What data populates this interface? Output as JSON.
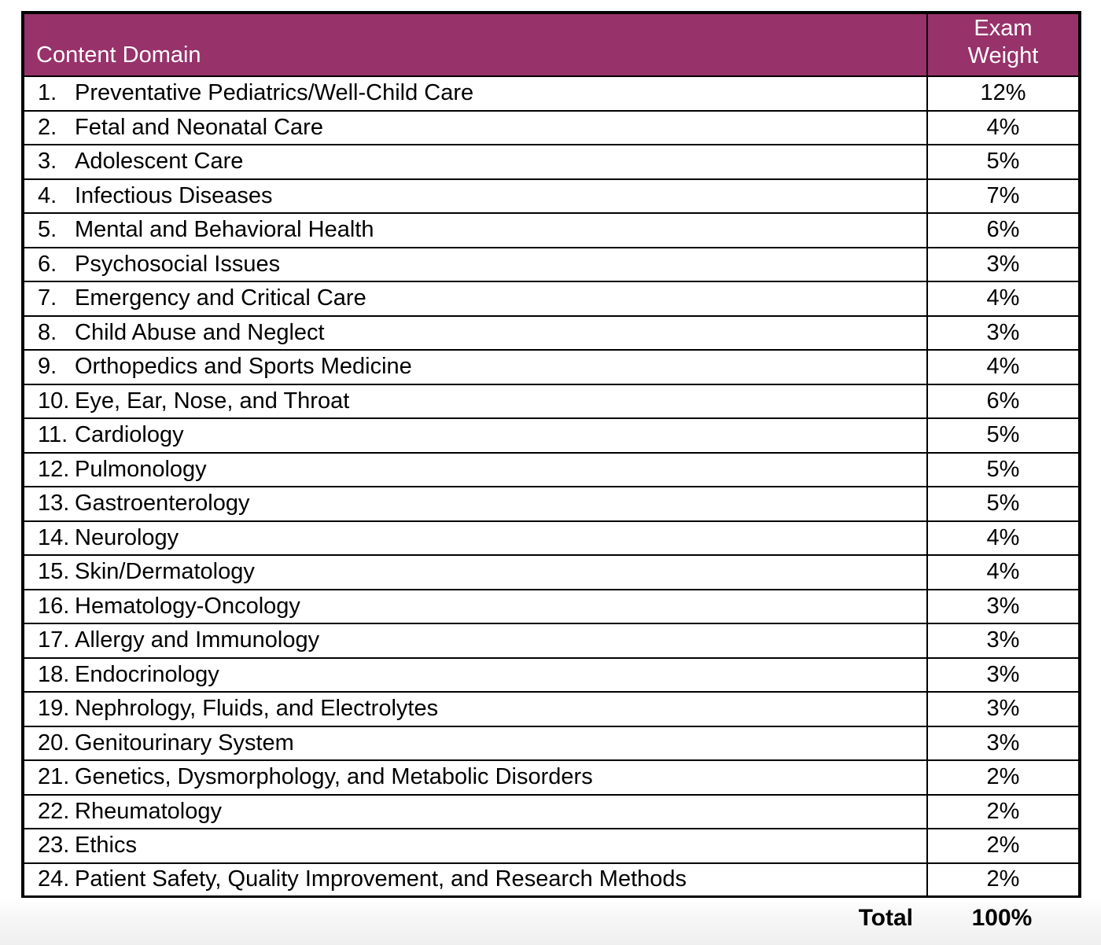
{
  "theme": {
    "page_bg": "#FFFFFF",
    "header_bg": "#97326A",
    "header_text": "#FFFFFF",
    "body_text": "#000000",
    "border": "#000000",
    "footer_gradient_start": "#FFFFFF",
    "footer_gradient_end": "#EFEFEF"
  },
  "table": {
    "header": {
      "domain": "Content Domain",
      "weight_line1": "Exam",
      "weight_line2": "Weight"
    },
    "rows": [
      {
        "num": "1.",
        "label": "Preventative Pediatrics/Well-Child Care",
        "weight": "12%"
      },
      {
        "num": "2.",
        "label": "Fetal and Neonatal Care",
        "weight": "4%"
      },
      {
        "num": "3.",
        "label": "Adolescent Care",
        "weight": "5%"
      },
      {
        "num": "4.",
        "label": "Infectious Diseases",
        "weight": "7%"
      },
      {
        "num": "5.",
        "label": "Mental and Behavioral Health",
        "weight": "6%"
      },
      {
        "num": "6.",
        "label": "Psychosocial Issues",
        "weight": "3%"
      },
      {
        "num": "7.",
        "label": "Emergency and Critical Care",
        "weight": "4%"
      },
      {
        "num": "8.",
        "label": "Child Abuse and Neglect",
        "weight": "3%"
      },
      {
        "num": "9.",
        "label": "Orthopedics and Sports Medicine",
        "weight": "4%"
      },
      {
        "num": "10.",
        "label": "Eye, Ear, Nose, and Throat",
        "weight": "6%"
      },
      {
        "num": "11.",
        "label": "Cardiology",
        "weight": "5%"
      },
      {
        "num": "12.",
        "label": "Pulmonology",
        "weight": "5%"
      },
      {
        "num": "13.",
        "label": "Gastroenterology",
        "weight": "5%"
      },
      {
        "num": "14.",
        "label": "Neurology",
        "weight": "4%"
      },
      {
        "num": "15.",
        "label": "Skin/Dermatology",
        "weight": "4%"
      },
      {
        "num": "16.",
        "label": "Hematology-Oncology",
        "weight": "3%"
      },
      {
        "num": "17.",
        "label": "Allergy and Immunology",
        "weight": "3%"
      },
      {
        "num": "18.",
        "label": "Endocrinology",
        "weight": "3%"
      },
      {
        "num": "19.",
        "label": "Nephrology, Fluids, and Electrolytes",
        "weight": "3%"
      },
      {
        "num": "20.",
        "label": "Genitourinary System",
        "weight": "3%"
      },
      {
        "num": "21.",
        "label": "Genetics, Dysmorphology, and Metabolic Disorders",
        "weight": "2%"
      },
      {
        "num": "22.",
        "label": "Rheumatology",
        "weight": "2%"
      },
      {
        "num": "23.",
        "label": "Ethics",
        "weight": "2%"
      },
      {
        "num": "24.",
        "label": "Patient Safety, Quality Improvement, and Research Methods",
        "weight": "2%"
      }
    ]
  },
  "footer": {
    "total_label": "Total",
    "total_value": "100%"
  }
}
